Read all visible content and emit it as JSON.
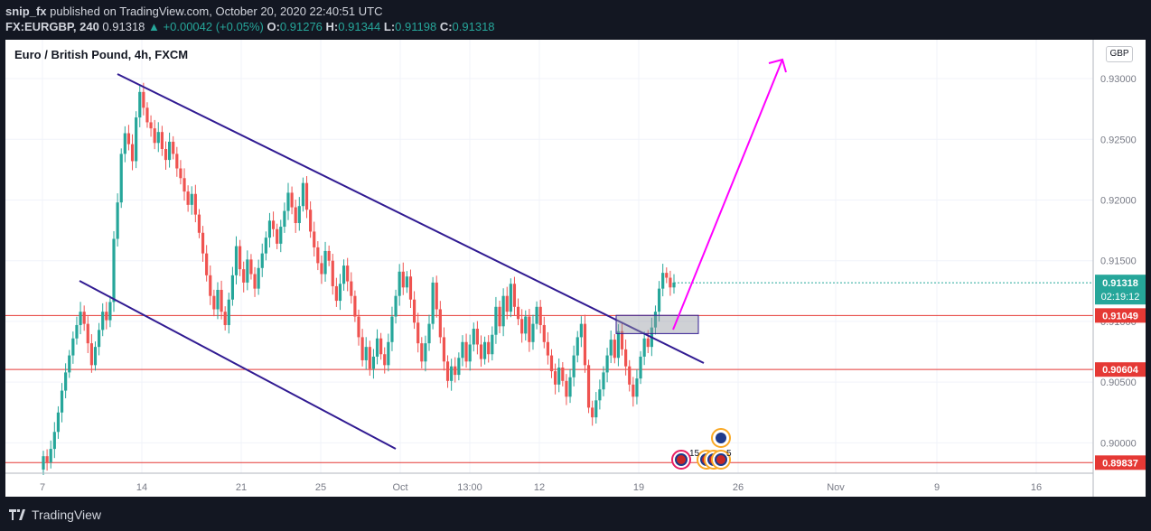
{
  "header": {
    "author": "snip_fx",
    "published": "published on TradingView.com, October 20, 2020 22:40:51 UTC",
    "symbol": "FX:EURGBP, 240",
    "last": "0.91318",
    "change": "▲ +0.00042 (+0.05%)",
    "o_label": "O:",
    "o": "0.91276",
    "h_label": "H:",
    "h": "0.91344",
    "l_label": "L:",
    "l": "0.91198",
    "c_label": "C:",
    "c": "0.91318"
  },
  "chart_title": "Euro / British Pound, 4h, FXCM",
  "currency": "GBP",
  "footer": {
    "brand": "TradingView"
  },
  "price_tags": {
    "current": "0.91318",
    "countdown": "02:19:12"
  },
  "events": {
    "count_left": "15",
    "count_right": "5"
  },
  "colors": {
    "bull": "#26a69a",
    "bear": "#ef5350",
    "trendline": "#311b92",
    "arrow": "#ff00ff",
    "level": "#e53935",
    "tag_green": "#26a69a",
    "tag_red": "#e53935"
  },
  "chart_data": {
    "type": "candlestick",
    "title": "Euro / British Pound, 4h, FXCM",
    "ylim": [
      0.8975,
      0.9332
    ],
    "y_ticks": [
      "0.93000",
      "0.92500",
      "0.92000",
      "0.91500",
      "0.91000",
      "0.90500",
      "0.90000"
    ],
    "x_ticks": [
      "7",
      "14",
      "21",
      "25",
      "Oct",
      "13:00",
      "12",
      "19",
      "26",
      "Nov",
      "9",
      "16"
    ],
    "horizontal_levels": [
      {
        "label": "0.91049",
        "value": 0.91049
      },
      {
        "label": "0.90604",
        "value": 0.90604
      },
      {
        "label": "0.89837",
        "value": 0.89837
      }
    ],
    "trendlines": [
      {
        "from": [
          0,
          0.9304
        ],
        "to": [
          0.45,
          0.8987
        ]
      },
      {
        "from": [
          0,
          0.9304
        ],
        "to": [
          1,
          0.906
        ]
      }
    ],
    "candles": [
      [
        0.8978,
        0.8989
      ],
      [
        0.8989,
        0.8984
      ],
      [
        0.8984,
        0.8995
      ],
      [
        0.8995,
        0.9009
      ],
      [
        0.9009,
        0.9025
      ],
      [
        0.9025,
        0.9043
      ],
      [
        0.9043,
        0.9058
      ],
      [
        0.9058,
        0.9072
      ],
      [
        0.9072,
        0.9086
      ],
      [
        0.9086,
        0.9097
      ],
      [
        0.9097,
        0.9108
      ],
      [
        0.9108,
        0.9098
      ],
      [
        0.9098,
        0.9082
      ],
      [
        0.9082,
        0.9064
      ],
      [
        0.9064,
        0.9079
      ],
      [
        0.9079,
        0.9093
      ],
      [
        0.9093,
        0.9108
      ],
      [
        0.9108,
        0.9101
      ],
      [
        0.9101,
        0.9116
      ],
      [
        0.9116,
        0.9168
      ],
      [
        0.9168,
        0.9198
      ],
      [
        0.9198,
        0.9238
      ],
      [
        0.9238,
        0.9255
      ],
      [
        0.9255,
        0.9246
      ],
      [
        0.9246,
        0.9232
      ],
      [
        0.9232,
        0.9268
      ],
      [
        0.9268,
        0.9289
      ],
      [
        0.9289,
        0.9276
      ],
      [
        0.9276,
        0.9264
      ],
      [
        0.9264,
        0.9259
      ],
      [
        0.9259,
        0.9247
      ],
      [
        0.9247,
        0.9256
      ],
      [
        0.9256,
        0.9242
      ],
      [
        0.9242,
        0.9233
      ],
      [
        0.9233,
        0.9248
      ],
      [
        0.9248,
        0.9238
      ],
      [
        0.9238,
        0.9226
      ],
      [
        0.9226,
        0.9218
      ],
      [
        0.9218,
        0.9207
      ],
      [
        0.9207,
        0.9196
      ],
      [
        0.9196,
        0.9205
      ],
      [
        0.9205,
        0.9188
      ],
      [
        0.9188,
        0.9173
      ],
      [
        0.9173,
        0.9156
      ],
      [
        0.9156,
        0.9138
      ],
      [
        0.9138,
        0.9121
      ],
      [
        0.9121,
        0.911
      ],
      [
        0.911,
        0.9126
      ],
      [
        0.9126,
        0.9108
      ],
      [
        0.9108,
        0.9097
      ],
      [
        0.9097,
        0.9118
      ],
      [
        0.9118,
        0.9138
      ],
      [
        0.9138,
        0.9162
      ],
      [
        0.9162,
        0.9143
      ],
      [
        0.9143,
        0.9132
      ],
      [
        0.9132,
        0.9151
      ],
      [
        0.9151,
        0.9139
      ],
      [
        0.9139,
        0.9127
      ],
      [
        0.9127,
        0.9144
      ],
      [
        0.9144,
        0.9156
      ],
      [
        0.9156,
        0.9169
      ],
      [
        0.9169,
        0.9183
      ],
      [
        0.9183,
        0.9176
      ],
      [
        0.9176,
        0.9164
      ],
      [
        0.9164,
        0.9178
      ],
      [
        0.9178,
        0.9191
      ],
      [
        0.9191,
        0.9206
      ],
      [
        0.9206,
        0.9194
      ],
      [
        0.9194,
        0.9181
      ],
      [
        0.9181,
        0.9195
      ],
      [
        0.9195,
        0.9214
      ],
      [
        0.9214,
        0.9192
      ],
      [
        0.9192,
        0.9174
      ],
      [
        0.9174,
        0.9161
      ],
      [
        0.9161,
        0.9148
      ],
      [
        0.9148,
        0.9139
      ],
      [
        0.9139,
        0.9158
      ],
      [
        0.9158,
        0.915
      ],
      [
        0.915,
        0.9129
      ],
      [
        0.9129,
        0.9117
      ],
      [
        0.9117,
        0.9131
      ],
      [
        0.9131,
        0.9146
      ],
      [
        0.9146,
        0.9133
      ],
      [
        0.9133,
        0.9121
      ],
      [
        0.9121,
        0.9104
      ],
      [
        0.9104,
        0.9087
      ],
      [
        0.9087,
        0.9068
      ],
      [
        0.9068,
        0.9079
      ],
      [
        0.9079,
        0.9061
      ],
      [
        0.9061,
        0.9071
      ],
      [
        0.9071,
        0.9086
      ],
      [
        0.9086,
        0.9073
      ],
      [
        0.9073,
        0.9064
      ],
      [
        0.9064,
        0.9083
      ],
      [
        0.9083,
        0.9104
      ],
      [
        0.9104,
        0.9121
      ],
      [
        0.9121,
        0.9141
      ],
      [
        0.9141,
        0.9128
      ],
      [
        0.9128,
        0.9137
      ],
      [
        0.9137,
        0.9118
      ],
      [
        0.9118,
        0.9099
      ],
      [
        0.9099,
        0.9082
      ],
      [
        0.9082,
        0.9067
      ],
      [
        0.9067,
        0.9082
      ],
      [
        0.9082,
        0.9098
      ],
      [
        0.9098,
        0.9132
      ],
      [
        0.9132,
        0.911
      ],
      [
        0.911,
        0.9087
      ],
      [
        0.9087,
        0.9067
      ],
      [
        0.9067,
        0.9051
      ],
      [
        0.9051,
        0.9063
      ],
      [
        0.9063,
        0.9056
      ],
      [
        0.9056,
        0.907
      ],
      [
        0.907,
        0.9083
      ],
      [
        0.9083,
        0.9067
      ],
      [
        0.9067,
        0.9081
      ],
      [
        0.9081,
        0.9094
      ],
      [
        0.9094,
        0.9081
      ],
      [
        0.9081,
        0.9069
      ],
      [
        0.9069,
        0.9083
      ],
      [
        0.9083,
        0.9073
      ],
      [
        0.9073,
        0.9089
      ],
      [
        0.9089,
        0.9112
      ],
      [
        0.9112,
        0.9096
      ],
      [
        0.9096,
        0.9121
      ],
      [
        0.9121,
        0.9108
      ],
      [
        0.9108,
        0.9131
      ],
      [
        0.9131,
        0.9112
      ],
      [
        0.9112,
        0.9102
      ],
      [
        0.9102,
        0.909
      ],
      [
        0.909,
        0.9104
      ],
      [
        0.9104,
        0.9083
      ],
      [
        0.9083,
        0.9098
      ],
      [
        0.9098,
        0.9112
      ],
      [
        0.9112,
        0.9097
      ],
      [
        0.9097,
        0.9083
      ],
      [
        0.9083,
        0.9072
      ],
      [
        0.9072,
        0.9059
      ],
      [
        0.9059,
        0.9048
      ],
      [
        0.9048,
        0.9062
      ],
      [
        0.9062,
        0.9051
      ],
      [
        0.9051,
        0.9038
      ],
      [
        0.9038,
        0.9054
      ],
      [
        0.9054,
        0.9072
      ],
      [
        0.9072,
        0.9087
      ],
      [
        0.9087,
        0.9098
      ],
      [
        0.9098,
        0.9064
      ],
      [
        0.9064,
        0.9029
      ],
      [
        0.9029,
        0.9021
      ],
      [
        0.9021,
        0.9035
      ],
      [
        0.9035,
        0.9044
      ],
      [
        0.9044,
        0.9058
      ],
      [
        0.9058,
        0.9072
      ],
      [
        0.9072,
        0.9085
      ],
      [
        0.9085,
        0.907
      ],
      [
        0.907,
        0.9092
      ],
      [
        0.9092,
        0.9077
      ],
      [
        0.9077,
        0.9063
      ],
      [
        0.9063,
        0.9048
      ],
      [
        0.9048,
        0.9038
      ],
      [
        0.9038,
        0.9053
      ],
      [
        0.9053,
        0.9071
      ],
      [
        0.9071,
        0.9086
      ],
      [
        0.9086,
        0.9079
      ],
      [
        0.9079,
        0.9095
      ],
      [
        0.9095,
        0.9108
      ],
      [
        0.9108,
        0.9127
      ],
      [
        0.9127,
        0.914
      ],
      [
        0.914,
        0.9136
      ],
      [
        0.9136,
        0.9128
      ],
      [
        0.9128,
        0.9132
      ]
    ],
    "projection_arrow": {
      "from_price": 0.9106,
      "to_price": 0.9318
    },
    "zone": {
      "top": 0.9105,
      "bottom": 0.909
    }
  }
}
